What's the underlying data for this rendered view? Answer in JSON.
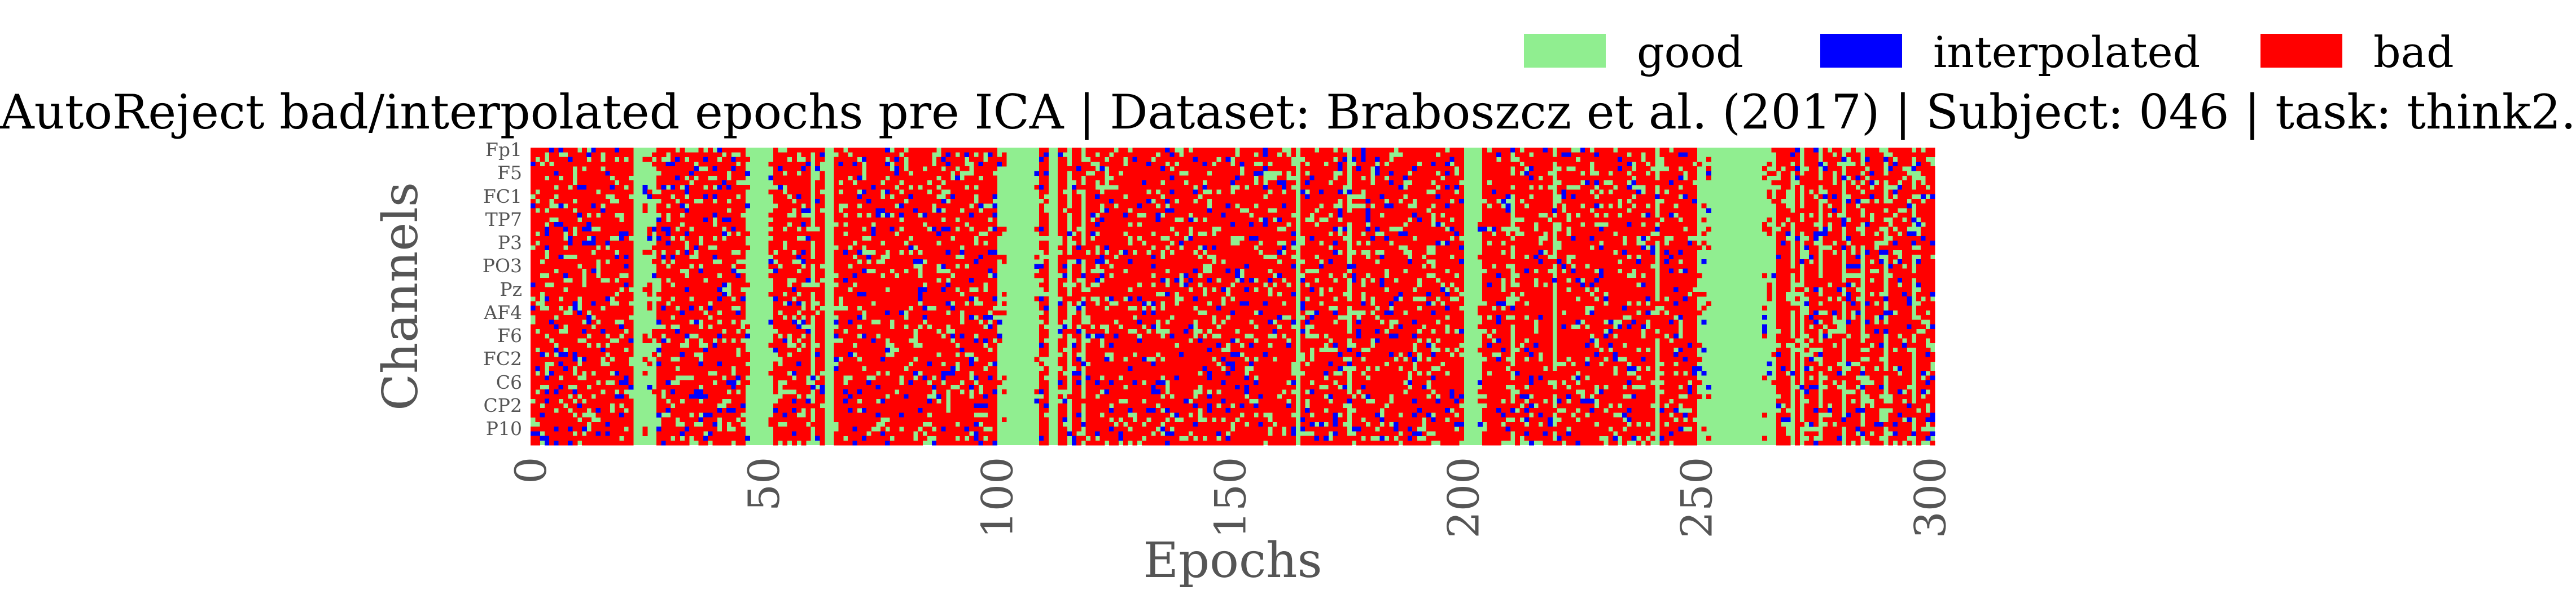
{
  "chart_data": {
    "type": "heatmap",
    "title": "AutoReject bad/interpolated epochs pre ICA | Dataset: Braboszcz et al. (2017) | Subject: 046 | task: think2.",
    "xlabel": "Epochs",
    "ylabel": "Channels",
    "x_range": [
      0,
      301
    ],
    "n_epochs": 301,
    "n_channels": 64,
    "xticks": [
      "0",
      "50",
      "100",
      "150",
      "200",
      "250",
      "300"
    ],
    "xtick_values": [
      0,
      50,
      100,
      150,
      200,
      250,
      300
    ],
    "yticks": [
      "Fp1",
      "F5",
      "FC1",
      "TP7",
      "P3",
      "PO3",
      "Pz",
      "AF4",
      "F6",
      "FC2",
      "C6",
      "CP2",
      "P10"
    ],
    "ytick_channel_index": [
      0,
      5,
      10,
      15,
      20,
      25,
      30,
      35,
      40,
      45,
      50,
      55,
      60
    ],
    "legend": {
      "position": "top-right",
      "entries": [
        {
          "label": "good",
          "color": "#90EE90"
        },
        {
          "label": "interpolated",
          "color": "#0000FF"
        },
        {
          "label": "bad",
          "color": "#FF0000"
        }
      ]
    },
    "fully_good_epochs": [
      22,
      23,
      47,
      48,
      49,
      50,
      63,
      64,
      102,
      103,
      104,
      105,
      106,
      107,
      111,
      112,
      164,
      200,
      201,
      202,
      253,
      254,
      255,
      256,
      257,
      258,
      259,
      260,
      261,
      262,
      263
    ],
    "mostly_good_epochs": [
      24,
      25,
      26,
      46,
      51,
      60,
      100,
      101,
      108,
      115,
      118,
      175,
      203,
      210,
      219,
      241,
      250,
      251,
      252,
      264,
      265,
      266,
      270,
      272,
      276,
      281,
      285,
      290,
      296
    ],
    "mostly_bad_channel_rows_overall": "most epochs show the majority of channels marked bad, with scattered interpolated channels"
  }
}
